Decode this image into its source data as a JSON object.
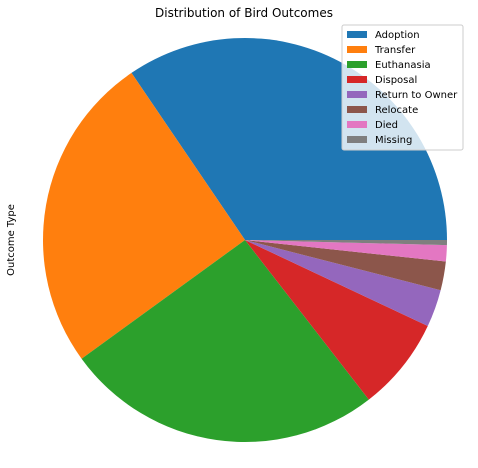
{
  "chart_data": {
    "type": "pie",
    "title": "Distribution of Bird Outcomes",
    "ylabel": "Outcome Type",
    "legend_position": "top-right",
    "start_angle_deg": 0,
    "direction": "counterclockwise",
    "slices": [
      {
        "label": "Adoption",
        "value": 34.5,
        "color": "#1f77b4"
      },
      {
        "label": "Transfer",
        "value": 25.5,
        "color": "#ff7f0e"
      },
      {
        "label": "Euthanasia",
        "value": 25.5,
        "color": "#2ca02c"
      },
      {
        "label": "Disposal",
        "value": 7.5,
        "color": "#d62728"
      },
      {
        "label": "Return to Owner",
        "value": 3.0,
        "color": "#9467bd"
      },
      {
        "label": "Relocate",
        "value": 2.3,
        "color": "#8c564b"
      },
      {
        "label": "Died",
        "value": 1.3,
        "color": "#e377c2"
      },
      {
        "label": "Missing",
        "value": 0.4,
        "color": "#7f7f7f"
      }
    ]
  }
}
